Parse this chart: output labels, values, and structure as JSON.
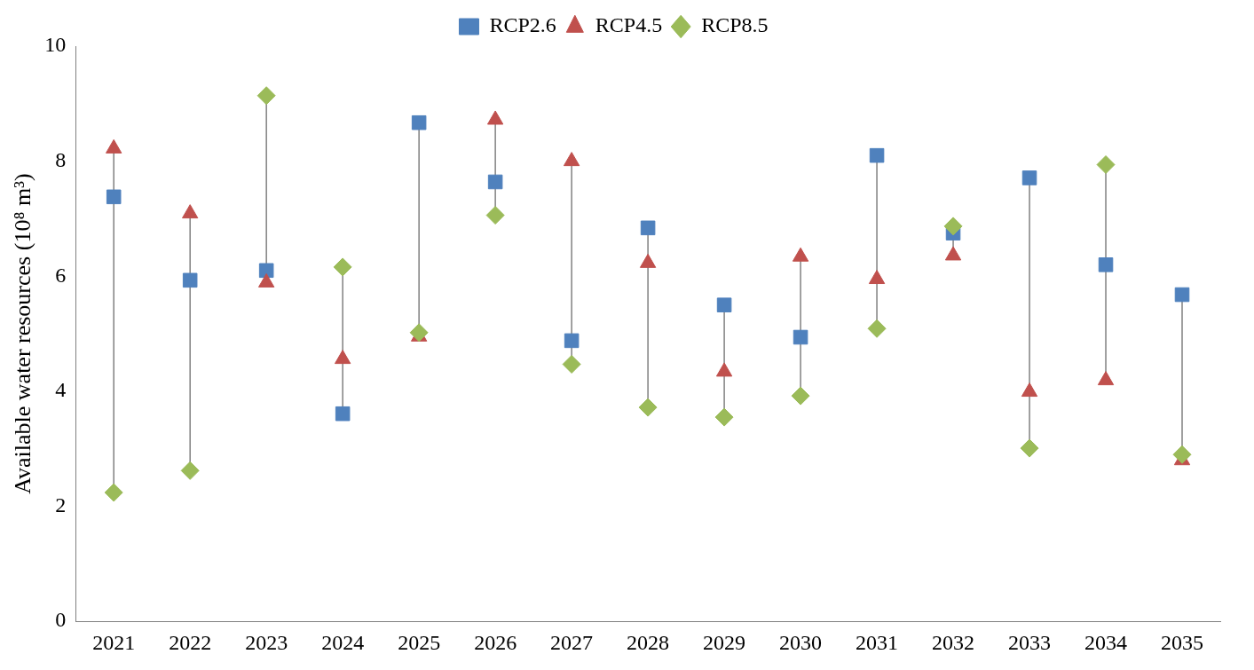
{
  "chart_data": {
    "type": "scatter",
    "ylabel": "Available water resources (10⁸ m³)",
    "categories": [
      "2021",
      "2022",
      "2023",
      "2024",
      "2025",
      "2026",
      "2027",
      "2028",
      "2029",
      "2030",
      "2031",
      "2032",
      "2033",
      "2034",
      "2035"
    ],
    "series": [
      {
        "name": "RCP2.6",
        "color": "#4f81bd",
        "marker": "square",
        "values": [
          7.38,
          5.93,
          6.1,
          3.61,
          8.67,
          7.64,
          4.88,
          6.84,
          5.5,
          4.94,
          8.1,
          6.75,
          7.71,
          6.2,
          5.68
        ]
      },
      {
        "name": "RCP4.5",
        "color": "#c0504d",
        "marker": "triangle",
        "values": [
          8.22,
          7.09,
          5.89,
          4.56,
          4.95,
          8.72,
          8.0,
          6.23,
          4.34,
          6.34,
          5.95,
          6.36,
          3.99,
          4.19,
          2.8
        ]
      },
      {
        "name": "RCP8.5",
        "color": "#9bbb59",
        "marker": "diamond",
        "values": [
          2.24,
          2.62,
          9.14,
          6.16,
          5.02,
          7.06,
          4.47,
          3.72,
          3.55,
          3.92,
          5.09,
          6.87,
          3.01,
          7.94,
          2.9
        ]
      }
    ],
    "ylim": [
      0,
      10
    ],
    "yticks": [
      0,
      2,
      4,
      6,
      8,
      10
    ],
    "grid": false,
    "legend": "top"
  }
}
